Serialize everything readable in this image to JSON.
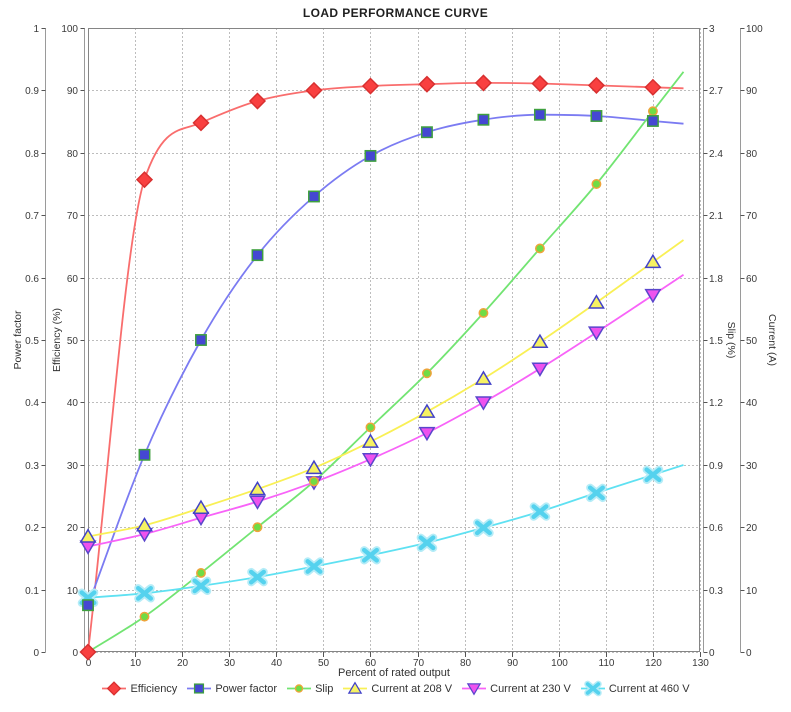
{
  "title": "LOAD PERFORMANCE CURVE",
  "chart_data": {
    "type": "line",
    "title": "LOAD PERFORMANCE CURVE",
    "xlabel": "Percent of rated output",
    "grid": true,
    "legend_position": "bottom",
    "line_extend_to": 126.5,
    "x_axis": {
      "min": 0,
      "max": 130,
      "tick_step": 10,
      "ticks": [
        0,
        10,
        20,
        30,
        40,
        50,
        60,
        70,
        80,
        90,
        100,
        110,
        120,
        130
      ]
    },
    "axes": {
      "power_factor": {
        "label": "Power factor",
        "side": "left",
        "min": 0,
        "max": 1,
        "tick_step": 0.1,
        "ticks": [
          0,
          0.1,
          0.2,
          0.3,
          0.4,
          0.5,
          0.6,
          0.7,
          0.8,
          0.9,
          1
        ]
      },
      "efficiency": {
        "label": "Efficiency (%)",
        "side": "left",
        "min": 0,
        "max": 100,
        "tick_step": 10,
        "ticks": [
          0,
          10,
          20,
          30,
          40,
          50,
          60,
          70,
          80,
          90,
          100
        ]
      },
      "slip": {
        "label": "Slip (%)",
        "side": "right",
        "min": 0,
        "max": 3,
        "tick_step": 0.3,
        "ticks": [
          0,
          0.3,
          0.6,
          0.9,
          1.2,
          1.5,
          1.8,
          2.1,
          2.4,
          2.7,
          3
        ]
      },
      "current": {
        "label": "Current (A)",
        "side": "right",
        "min": 0,
        "max": 100,
        "tick_step": 10,
        "ticks": [
          0,
          10,
          20,
          30,
          40,
          50,
          60,
          70,
          80,
          90,
          100
        ]
      }
    },
    "x": [
      0,
      12,
      24,
      36,
      48,
      60,
      72,
      84,
      96,
      108,
      120
    ],
    "series": [
      {
        "name": "Efficiency",
        "axis": "efficiency",
        "marker": "diamond",
        "line_color": "#f96d6d",
        "marker_fill": "#f94040",
        "marker_stroke": "#d83030",
        "values": [
          0,
          75.7,
          84.8,
          88.3,
          90.0,
          90.7,
          91.0,
          91.2,
          91.1,
          90.8,
          90.5
        ]
      },
      {
        "name": "Power factor",
        "axis": "power_factor",
        "marker": "square",
        "line_color": "#7b7bf2",
        "marker_fill": "#4547d2",
        "marker_stroke": "#3fa03f",
        "values": [
          0.075,
          0.316,
          0.5,
          0.636,
          0.73,
          0.795,
          0.833,
          0.853,
          0.861,
          0.859,
          0.851
        ]
      },
      {
        "name": "Slip",
        "axis": "slip",
        "marker": "circle",
        "line_color": "#72e472",
        "marker_fill": "#6fdc45",
        "marker_stroke": "#efa33a",
        "values": [
          0,
          0.17,
          0.38,
          0.6,
          0.82,
          1.08,
          1.34,
          1.63,
          1.94,
          2.25,
          2.6
        ]
      },
      {
        "name": "Current at 208 V",
        "axis": "current",
        "marker": "triangle-up",
        "line_color": "#f9f055",
        "marker_fill": "#f6f263",
        "marker_stroke": "#4242c8",
        "values": [
          18.5,
          20.3,
          23.1,
          26.1,
          29.5,
          33.7,
          38.5,
          43.8,
          49.7,
          56.0,
          62.5
        ]
      },
      {
        "name": "Current at 230 V",
        "axis": "current",
        "marker": "triangle-down",
        "line_color": "#f863f8",
        "marker_fill": "#ee52ee",
        "marker_stroke": "#5a46cc",
        "values": [
          16.9,
          18.9,
          21.5,
          24.1,
          27.2,
          30.9,
          35.1,
          40.0,
          45.4,
          51.2,
          57.2
        ]
      },
      {
        "name": "Current at 460 V",
        "axis": "current",
        "marker": "x-cross",
        "line_color": "#5fe1f2",
        "marker_fill": "#55d2ee",
        "marker_stroke": "#b5ecf7",
        "values": [
          8.7,
          9.4,
          10.6,
          12.0,
          13.7,
          15.5,
          17.5,
          19.9,
          22.5,
          25.5,
          28.4
        ]
      }
    ]
  },
  "colors": {
    "gridline": "#bdbdbd",
    "plot_frame": "#858585",
    "axis_line": "#9a9a9a",
    "tick": "#555555"
  }
}
